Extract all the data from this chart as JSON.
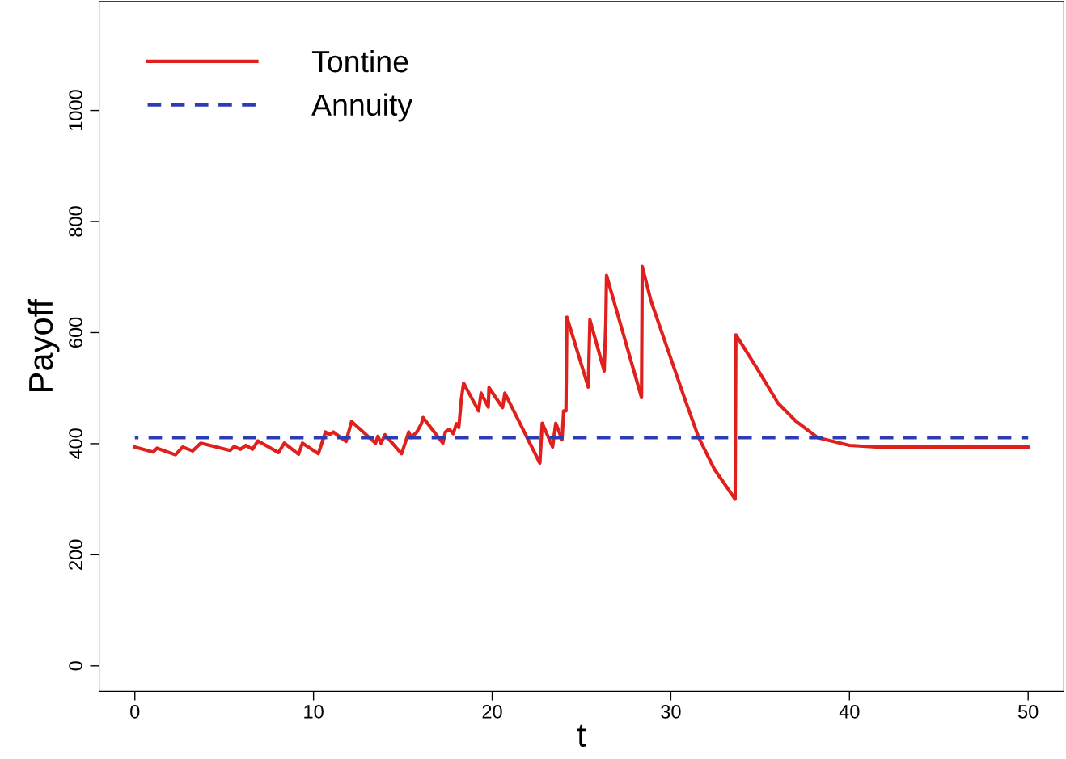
{
  "chart_data": {
    "type": "line",
    "xlabel": "t",
    "ylabel": "Payoff",
    "xlim": [
      -2,
      52
    ],
    "ylim": [
      -46,
      1196
    ],
    "xticks": [
      0,
      10,
      20,
      30,
      40,
      50
    ],
    "yticks": [
      0,
      200,
      400,
      600,
      800,
      1000
    ],
    "grid": false,
    "legend": "top left",
    "marker": "none",
    "series": [
      {
        "name": "Tontine",
        "color": "#e0201c",
        "line_style": "solid",
        "x": [
          0,
          1.02,
          1.24,
          2.27,
          2.67,
          3.24,
          3.69,
          5.33,
          5.56,
          5.91,
          6.22,
          6.58,
          6.89,
          8.04,
          8.36,
          9.16,
          9.38,
          10.27,
          10.67,
          10.89,
          11.11,
          11.82,
          12.13,
          13.47,
          13.6,
          13.78,
          14.0,
          14.93,
          15.33,
          15.47,
          15.78,
          16.04,
          16.13,
          17.24,
          17.38,
          17.6,
          17.82,
          18.0,
          18.13,
          18.27,
          18.4,
          19.24,
          19.38,
          19.78,
          19.82,
          20.58,
          20.71,
          22.67,
          22.8,
          23.38,
          23.56,
          23.91,
          24.0,
          24.13,
          24.18,
          25.38,
          25.47,
          26.27,
          26.36,
          26.4,
          28.36,
          28.4,
          28.89,
          29.78,
          30.8,
          31.56,
          32.44,
          33.6,
          33.64,
          34.8,
          36.0,
          37.02,
          38.22,
          40.0,
          41.47,
          50
        ],
        "values": [
          394,
          385,
          392,
          380,
          394,
          387,
          401,
          388,
          395,
          390,
          397,
          390,
          405,
          384,
          401,
          381,
          401,
          382,
          421,
          416,
          421,
          404,
          440,
          401,
          413,
          401,
          416,
          382,
          421,
          411,
          421,
          436,
          447,
          401,
          421,
          426,
          418,
          436,
          429,
          479,
          509,
          459,
          491,
          466,
          501,
          465,
          491,
          365,
          437,
          394,
          437,
          407,
          459,
          459,
          628,
          502,
          623,
          531,
          618,
          703,
          483,
          719,
          657,
          574,
          479,
          411,
          354,
          300,
          596,
          537,
          473,
          440,
          411,
          397,
          394,
          394
        ]
      },
      {
        "name": "Annuity",
        "color": "#2e3cb4",
        "line_style": "dashed",
        "x": [
          0,
          50
        ],
        "values": [
          411,
          411
        ]
      }
    ]
  }
}
